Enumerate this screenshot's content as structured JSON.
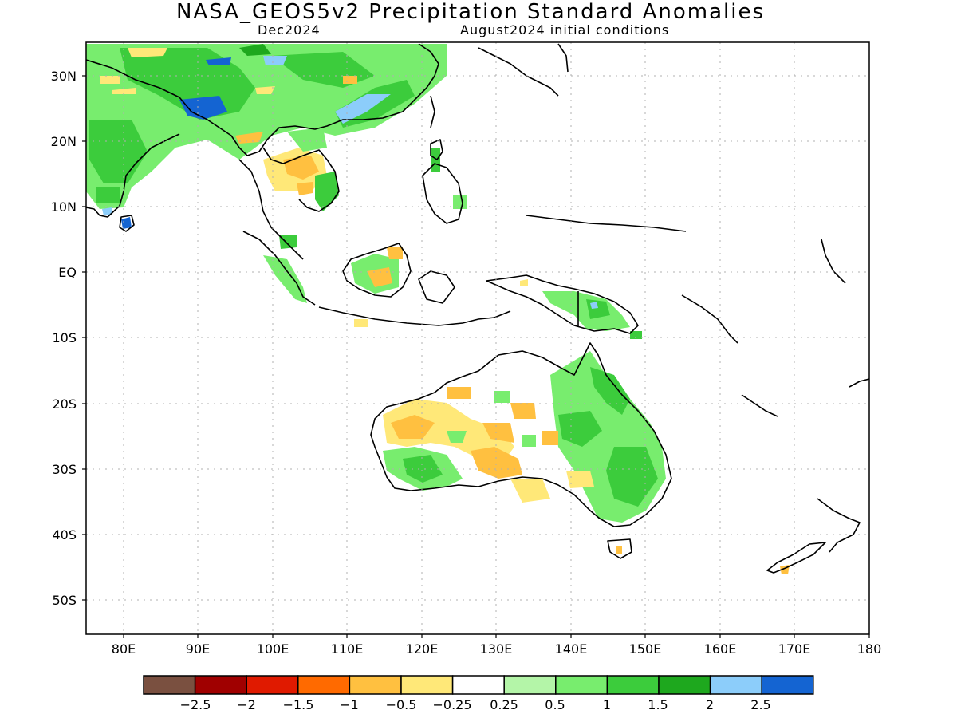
{
  "header": {
    "title": "NASA_GEOS5v2 Precipitation Standard Anomalies",
    "valid_month": "Dec2024",
    "init_label": "August2024 initial conditions"
  },
  "axes": {
    "lat_labels": [
      "30N",
      "20N",
      "10N",
      "EQ",
      "10S",
      "20S",
      "30S",
      "40S",
      "50S"
    ],
    "lon_labels": [
      "80E",
      "90E",
      "100E",
      "110E",
      "120E",
      "130E",
      "140E",
      "150E",
      "160E",
      "170E",
      "180"
    ]
  },
  "colorbar": {
    "colors": [
      "#7a5040",
      "#a00000",
      "#e01a00",
      "#ff6a00",
      "#ffc040",
      "#ffe878",
      "#ffffff",
      "#b4f5a8",
      "#78ed6e",
      "#3ccc3c",
      "#1ea81e",
      "#8ccdfa",
      "#1464d2"
    ],
    "labels": [
      "−2.5",
      "−2",
      "−1.5",
      "−1",
      "−0.5",
      "−0.25",
      "0.25",
      "0.5",
      "1",
      "1.5",
      "2",
      "2.5"
    ]
  }
}
